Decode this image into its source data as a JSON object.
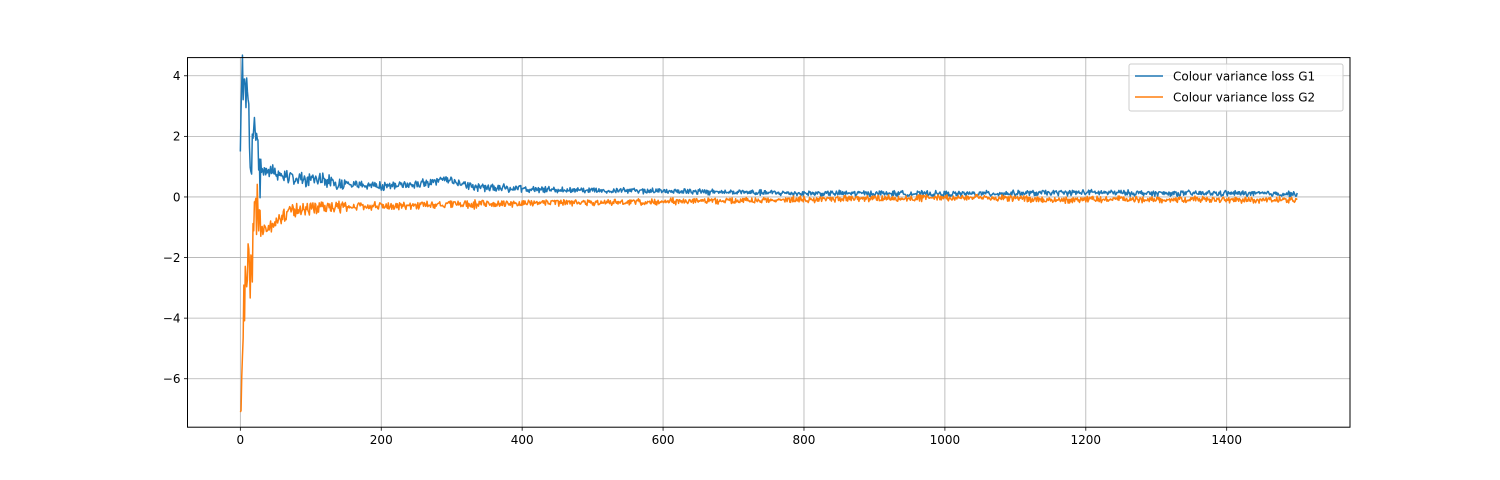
{
  "chart_data": {
    "type": "line",
    "title": "",
    "xlabel": "",
    "ylabel": "",
    "xlim": [
      -75,
      1575
    ],
    "ylim": [
      -7.6,
      4.6
    ],
    "xticks": [
      0,
      200,
      400,
      600,
      800,
      1000,
      1200,
      1400
    ],
    "yticks": [
      4,
      2,
      0,
      -2,
      -4,
      -6
    ],
    "ytick_labels": [
      "4",
      "2",
      "0",
      "−2",
      "−4",
      "−6"
    ],
    "grid": true,
    "legend_position": "top-right",
    "series": [
      {
        "name": "Colour variance loss G1",
        "color": "#1f77b4",
        "keypoints": [
          [
            0,
            1.5
          ],
          [
            3,
            4.05
          ],
          [
            6,
            3.9
          ],
          [
            10,
            3.0
          ],
          [
            13,
            2.2
          ],
          [
            16,
            0.5
          ],
          [
            20,
            2.8
          ],
          [
            25,
            1.2
          ],
          [
            30,
            0.9
          ],
          [
            50,
            0.8
          ],
          [
            80,
            0.65
          ],
          [
            120,
            0.5
          ],
          [
            160,
            0.4
          ],
          [
            200,
            0.35
          ],
          [
            240,
            0.4
          ],
          [
            290,
            0.55
          ],
          [
            330,
            0.35
          ],
          [
            400,
            0.25
          ],
          [
            500,
            0.22
          ],
          [
            600,
            0.2
          ],
          [
            700,
            0.15
          ],
          [
            800,
            0.12
          ],
          [
            900,
            0.12
          ],
          [
            1000,
            0.1
          ],
          [
            1100,
            0.12
          ],
          [
            1200,
            0.15
          ],
          [
            1300,
            0.12
          ],
          [
            1400,
            0.12
          ],
          [
            1500,
            0.1
          ]
        ],
        "noise": [
          0.9,
          0.2,
          0.12,
          0.08
        ]
      },
      {
        "name": "Colour variance loss G2",
        "color": "#ff7f0e",
        "keypoints": [
          [
            0,
            -7.1
          ],
          [
            2,
            -5.5
          ],
          [
            4,
            -4.0
          ],
          [
            8,
            -3.0
          ],
          [
            11,
            -1.9
          ],
          [
            14,
            -3.0
          ],
          [
            18,
            -1.5
          ],
          [
            22,
            -0.6
          ],
          [
            30,
            -1.1
          ],
          [
            45,
            -0.9
          ],
          [
            70,
            -0.5
          ],
          [
            100,
            -0.35
          ],
          [
            150,
            -0.32
          ],
          [
            200,
            -0.3
          ],
          [
            300,
            -0.25
          ],
          [
            400,
            -0.2
          ],
          [
            500,
            -0.18
          ],
          [
            600,
            -0.15
          ],
          [
            700,
            -0.12
          ],
          [
            800,
            -0.08
          ],
          [
            900,
            -0.05
          ],
          [
            1000,
            -0.02
          ],
          [
            1100,
            -0.05
          ],
          [
            1150,
            -0.1
          ],
          [
            1200,
            -0.08
          ],
          [
            1300,
            -0.08
          ],
          [
            1400,
            -0.1
          ],
          [
            1500,
            -0.1
          ]
        ],
        "noise": [
          0.9,
          0.2,
          0.12,
          0.09
        ]
      }
    ]
  }
}
